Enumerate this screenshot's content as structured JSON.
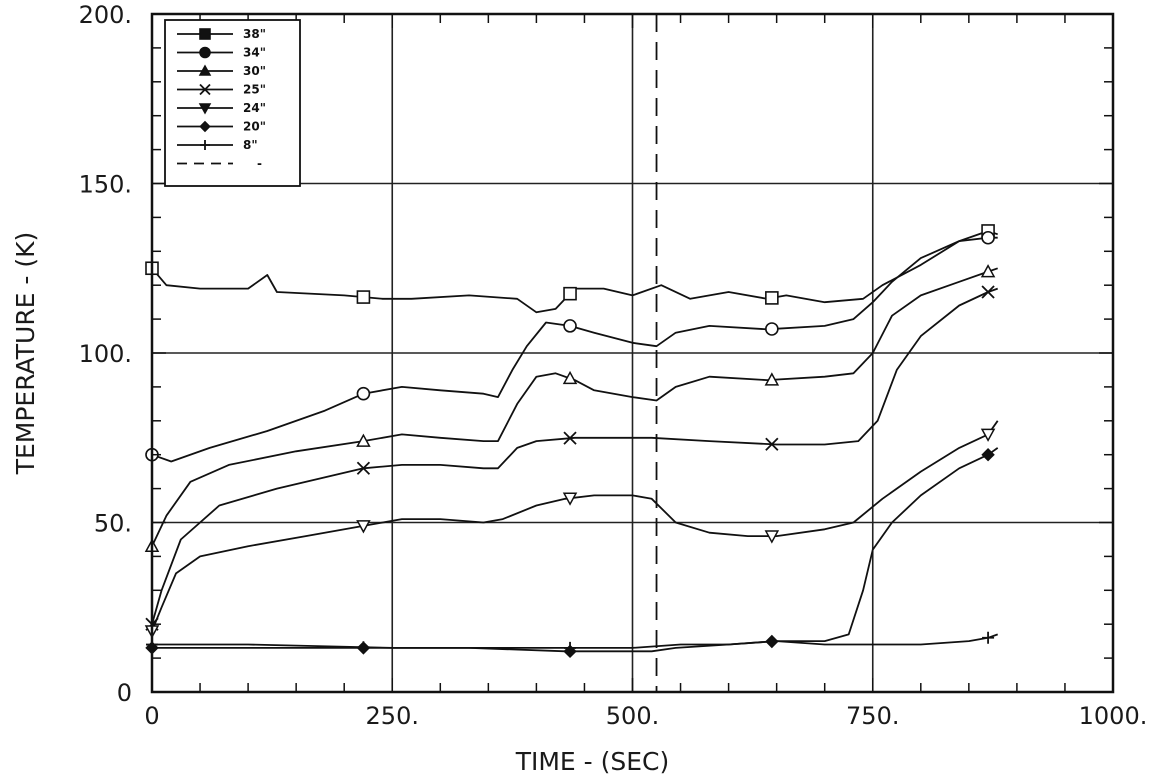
{
  "chart_data": {
    "type": "line",
    "xlabel": "TIME - (SEC)",
    "ylabel": "TEMPERATURE - (K)",
    "xlim": [
      0,
      1000
    ],
    "ylim": [
      0,
      200
    ],
    "xticks": [
      "0",
      "250.",
      "500.",
      "750.",
      "1000."
    ],
    "yticks": [
      "0",
      "50.",
      "100.",
      "150.",
      "200."
    ],
    "grid": true,
    "legend_position": "top-left",
    "legend_dashed_entry": "-",
    "reference_lines": [
      {
        "x": 525,
        "style": "dashed"
      }
    ],
    "series": [
      {
        "name": "38\"",
        "marker": "square",
        "points": [
          [
            0,
            125
          ],
          [
            15,
            120
          ],
          [
            50,
            119
          ],
          [
            100,
            119
          ],
          [
            120,
            123
          ],
          [
            130,
            118
          ],
          [
            200,
            117
          ],
          [
            240,
            116
          ],
          [
            270,
            116
          ],
          [
            330,
            117
          ],
          [
            380,
            116
          ],
          [
            400,
            112
          ],
          [
            420,
            113
          ],
          [
            440,
            119
          ],
          [
            470,
            119
          ],
          [
            500,
            117
          ],
          [
            530,
            120
          ],
          [
            560,
            116
          ],
          [
            600,
            118
          ],
          [
            640,
            116
          ],
          [
            660,
            117
          ],
          [
            700,
            115
          ],
          [
            740,
            116
          ],
          [
            760,
            120
          ],
          [
            800,
            126
          ],
          [
            840,
            133
          ],
          [
            870,
            136
          ],
          [
            880,
            135
          ]
        ]
      },
      {
        "name": "34\"",
        "marker": "circle",
        "points": [
          [
            0,
            70
          ],
          [
            20,
            68
          ],
          [
            60,
            72
          ],
          [
            120,
            77
          ],
          [
            180,
            83
          ],
          [
            220,
            88
          ],
          [
            260,
            90
          ],
          [
            300,
            89
          ],
          [
            345,
            88
          ],
          [
            360,
            87
          ],
          [
            375,
            95
          ],
          [
            390,
            102
          ],
          [
            410,
            109
          ],
          [
            435,
            108
          ],
          [
            460,
            106
          ],
          [
            500,
            103
          ],
          [
            525,
            102
          ],
          [
            545,
            106
          ],
          [
            580,
            108
          ],
          [
            640,
            107
          ],
          [
            700,
            108
          ],
          [
            730,
            110
          ],
          [
            750,
            115
          ],
          [
            770,
            121
          ],
          [
            800,
            128
          ],
          [
            840,
            133
          ],
          [
            870,
            134
          ],
          [
            880,
            134
          ]
        ]
      },
      {
        "name": "30\"",
        "marker": "triangle",
        "points": [
          [
            0,
            43
          ],
          [
            15,
            52
          ],
          [
            40,
            62
          ],
          [
            80,
            67
          ],
          [
            150,
            71
          ],
          [
            220,
            74
          ],
          [
            260,
            76
          ],
          [
            300,
            75
          ],
          [
            345,
            74
          ],
          [
            360,
            74
          ],
          [
            380,
            85
          ],
          [
            400,
            93
          ],
          [
            420,
            94
          ],
          [
            440,
            92
          ],
          [
            460,
            89
          ],
          [
            500,
            87
          ],
          [
            525,
            86
          ],
          [
            545,
            90
          ],
          [
            580,
            93
          ],
          [
            640,
            92
          ],
          [
            700,
            93
          ],
          [
            730,
            94
          ],
          [
            750,
            100
          ],
          [
            770,
            111
          ],
          [
            800,
            117
          ],
          [
            840,
            121
          ],
          [
            870,
            124
          ],
          [
            880,
            125
          ]
        ]
      },
      {
        "name": "25\"",
        "marker": "x",
        "points": [
          [
            0,
            20
          ],
          [
            10,
            30
          ],
          [
            30,
            45
          ],
          [
            70,
            55
          ],
          [
            130,
            60
          ],
          [
            220,
            66
          ],
          [
            260,
            67
          ],
          [
            300,
            67
          ],
          [
            345,
            66
          ],
          [
            360,
            66
          ],
          [
            380,
            72
          ],
          [
            400,
            74
          ],
          [
            440,
            75
          ],
          [
            520,
            75
          ],
          [
            580,
            74
          ],
          [
            650,
            73
          ],
          [
            700,
            73
          ],
          [
            735,
            74
          ],
          [
            755,
            80
          ],
          [
            775,
            95
          ],
          [
            800,
            105
          ],
          [
            840,
            114
          ],
          [
            870,
            118
          ],
          [
            880,
            119
          ]
        ]
      },
      {
        "name": "24\"",
        "marker": "triangle-down",
        "points": [
          [
            0,
            18
          ],
          [
            10,
            25
          ],
          [
            25,
            35
          ],
          [
            50,
            40
          ],
          [
            100,
            43
          ],
          [
            160,
            46
          ],
          [
            220,
            49
          ],
          [
            260,
            51
          ],
          [
            300,
            51
          ],
          [
            345,
            50
          ],
          [
            365,
            51
          ],
          [
            400,
            55
          ],
          [
            430,
            57
          ],
          [
            460,
            58
          ],
          [
            500,
            58
          ],
          [
            520,
            57
          ],
          [
            545,
            50
          ],
          [
            580,
            47
          ],
          [
            620,
            46
          ],
          [
            650,
            46
          ],
          [
            700,
            48
          ],
          [
            730,
            50
          ],
          [
            760,
            57
          ],
          [
            800,
            65
          ],
          [
            840,
            72
          ],
          [
            870,
            76
          ],
          [
            880,
            80
          ]
        ]
      },
      {
        "name": "20\"",
        "marker": "diamond",
        "points": [
          [
            0,
            13
          ],
          [
            100,
            13
          ],
          [
            220,
            13
          ],
          [
            330,
            13
          ],
          [
            430,
            12
          ],
          [
            500,
            12
          ],
          [
            520,
            12
          ],
          [
            545,
            13
          ],
          [
            600,
            14
          ],
          [
            650,
            15
          ],
          [
            700,
            15
          ],
          [
            725,
            17
          ],
          [
            740,
            30
          ],
          [
            750,
            42
          ],
          [
            770,
            50
          ],
          [
            800,
            58
          ],
          [
            840,
            66
          ],
          [
            870,
            70
          ],
          [
            880,
            72
          ]
        ]
      },
      {
        "name": "8\"",
        "marker": "plus",
        "points": [
          [
            0,
            14
          ],
          [
            100,
            14
          ],
          [
            250,
            13
          ],
          [
            400,
            13
          ],
          [
            500,
            13
          ],
          [
            550,
            14
          ],
          [
            600,
            14
          ],
          [
            650,
            15
          ],
          [
            700,
            14
          ],
          [
            800,
            14
          ],
          [
            850,
            15
          ],
          [
            870,
            16
          ],
          [
            880,
            17
          ]
        ]
      }
    ]
  }
}
